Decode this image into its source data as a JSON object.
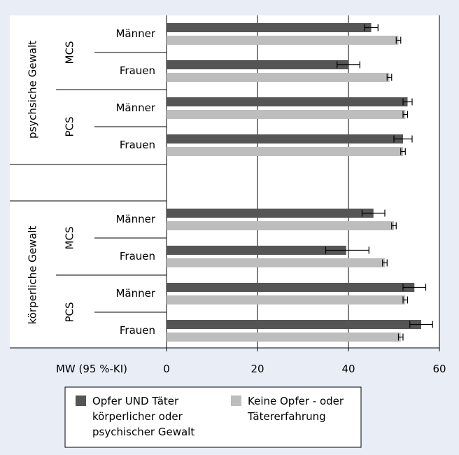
{
  "chart_data": {
    "type": "bar",
    "orientation": "horizontal",
    "xlabel": "MW (95 %-KI)",
    "xlim": [
      0,
      60
    ],
    "xticks": [
      0,
      20,
      40,
      60
    ],
    "legend_placement": "bottom",
    "series": [
      {
        "name": "Opfer UND Täter\nkörperlicher oder\npsychischer Gewalt",
        "color": "#555555"
      },
      {
        "name": "Keine Opfer - oder\nTätererfahrung",
        "color": "#bdbdbd"
      }
    ],
    "groups": [
      {
        "label": "psychsiche Gewalt",
        "subgroups": [
          {
            "label": "MCS",
            "rows": [
              {
                "label": "Männer",
                "values": [
                  45,
                  51
                ],
                "ci": [
                  [
                    43.5,
                    46.5
                  ],
                  [
                    50.5,
                    51.5
                  ]
                ]
              },
              {
                "label": "Frauen",
                "values": [
                  40,
                  49
                ],
                "ci": [
                  [
                    37.5,
                    42.5
                  ],
                  [
                    48.5,
                    49.5
                  ]
                ]
              }
            ]
          },
          {
            "label": "PCS",
            "rows": [
              {
                "label": "Männer",
                "values": [
                  53,
                  52.5
                ],
                "ci": [
                  [
                    52,
                    54
                  ],
                  [
                    52,
                    53
                  ]
                ]
              },
              {
                "label": "Frauen",
                "values": [
                  52,
                  52
                ],
                "ci": [
                  [
                    50,
                    54
                  ],
                  [
                    51.5,
                    52.5
                  ]
                ]
              }
            ]
          }
        ]
      },
      {
        "label": "körperliche Gewalt",
        "subgroups": [
          {
            "label": "MCS",
            "rows": [
              {
                "label": "Männer",
                "values": [
                  45.5,
                  50
                ],
                "ci": [
                  [
                    43,
                    48
                  ],
                  [
                    49.5,
                    50.5
                  ]
                ]
              },
              {
                "label": "Frauen",
                "values": [
                  39.5,
                  48
                ],
                "ci": [
                  [
                    35,
                    44.5
                  ],
                  [
                    47.5,
                    48.5
                  ]
                ]
              }
            ]
          },
          {
            "label": "PCS",
            "rows": [
              {
                "label": "Männer",
                "values": [
                  54.5,
                  52.5
                ],
                "ci": [
                  [
                    52,
                    57
                  ],
                  [
                    52,
                    53
                  ]
                ]
              },
              {
                "label": "Frauen",
                "values": [
                  56,
                  51.5
                ],
                "ci": [
                  [
                    53.5,
                    58.5
                  ],
                  [
                    51,
                    52
                  ]
                ]
              }
            ]
          }
        ]
      }
    ]
  }
}
